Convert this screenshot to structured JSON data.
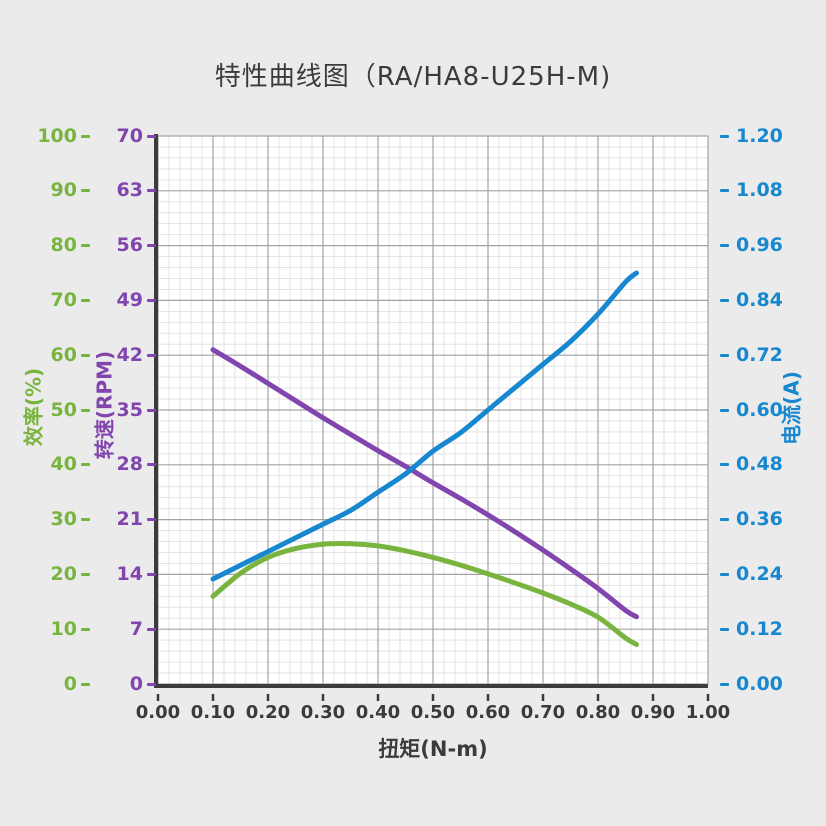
{
  "title": "特性曲线图（RA/HA8-U25H-M)",
  "colors": {
    "background": "#ebebeb",
    "plot_background": "#ffffff",
    "grid_major": "#a3a3a3",
    "grid_minor": "#e3e3e3",
    "spine": "#3b3b3b",
    "text": "#3b3b3b",
    "efficiency": "#79b43f",
    "speed": "#8145ad",
    "current": "#1787d0"
  },
  "chart_data": {
    "type": "line",
    "title": "特性曲线图（RA/HA8-U25H-M)",
    "xlabel": "扭矩(N-m)",
    "xlim": [
      0,
      1
    ],
    "x_ticks": [
      "0.00",
      "0.10",
      "0.20",
      "0.30",
      "0.40",
      "0.50",
      "0.60",
      "0.70",
      "0.80",
      "0.90",
      "1.00"
    ],
    "grid": "major and minor on, 5 minor divisions per major",
    "legend": "none (axis titles colored to match curves)",
    "axes": [
      {
        "id": "efficiency",
        "label": "效率(%)",
        "side": "outer-left",
        "color": "#79b43f",
        "range": [
          0,
          100
        ],
        "tick_labels": [
          "0",
          "10",
          "20",
          "30",
          "40",
          "50",
          "60",
          "70",
          "80",
          "90",
          "100"
        ]
      },
      {
        "id": "speed",
        "label": "转速(RPM)",
        "side": "inner-left",
        "color": "#8145ad",
        "range": [
          0,
          70
        ],
        "tick_labels": [
          "0",
          "7",
          "14",
          "21",
          "28",
          "35",
          "42",
          "49",
          "56",
          "63",
          "70"
        ]
      },
      {
        "id": "current",
        "label": "电流(A)",
        "side": "right",
        "color": "#1787d0",
        "range": [
          0,
          1.2
        ],
        "tick_labels": [
          "0.00",
          "0.12",
          "0.24",
          "0.36",
          "0.48",
          "0.60",
          "0.72",
          "0.84",
          "0.96",
          "1.08",
          "1.20"
        ]
      }
    ],
    "x": [
      0.1,
      0.15,
      0.2,
      0.25,
      0.3,
      0.35,
      0.4,
      0.45,
      0.5,
      0.55,
      0.6,
      0.65,
      0.7,
      0.75,
      0.8,
      0.85,
      0.87
    ],
    "series": [
      {
        "name": "转速(RPM)",
        "axis": "speed",
        "color": "#8145ad",
        "values": [
          42.7,
          40.6,
          38.4,
          36.2,
          34.0,
          31.9,
          29.8,
          27.8,
          25.7,
          23.7,
          21.6,
          19.4,
          17.1,
          14.7,
          12.2,
          9.4,
          8.6
        ]
      },
      {
        "name": "电流(A)",
        "axis": "current",
        "color": "#1787d0",
        "values": [
          0.23,
          0.26,
          0.29,
          0.32,
          0.35,
          0.38,
          0.42,
          0.46,
          0.51,
          0.55,
          0.6,
          0.65,
          0.7,
          0.75,
          0.81,
          0.88,
          0.9
        ]
      },
      {
        "name": "效率(%)",
        "axis": "efficiency",
        "color": "#79b43f",
        "values": [
          16.0,
          20.2,
          23.1,
          24.7,
          25.5,
          25.6,
          25.2,
          24.3,
          23.1,
          21.7,
          20.1,
          18.4,
          16.6,
          14.6,
          12.2,
          8.4,
          7.2
        ]
      }
    ]
  }
}
